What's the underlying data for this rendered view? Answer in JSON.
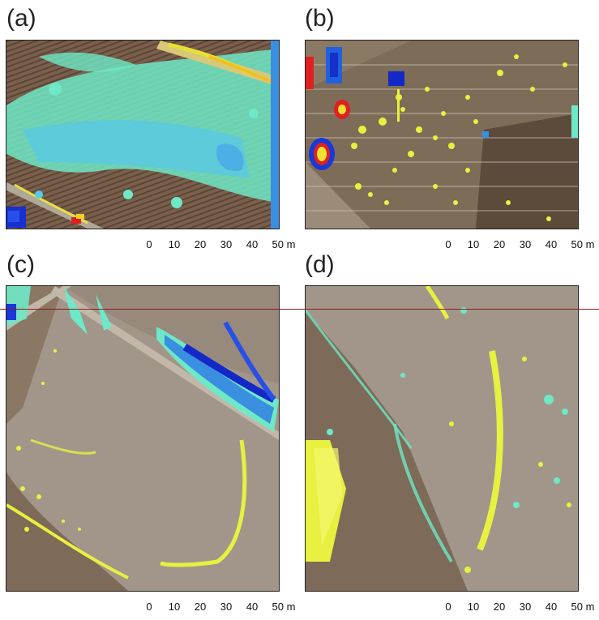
{
  "panels": [
    {
      "label": "(a)"
    },
    {
      "label": "(b)"
    },
    {
      "label": "(c)"
    },
    {
      "label": "(d)"
    }
  ],
  "scale_bar": {
    "ticks": [
      "0",
      "10",
      "20",
      "30",
      "40",
      "50 m"
    ]
  },
  "colors": {
    "soil_dark": "#6b5645",
    "soil_light": "#a89a88",
    "cyan": "#7fe8c8",
    "blue": "#2a7de0",
    "deep_blue": "#1428c8",
    "yellow": "#e8f040",
    "red": "#e02020"
  }
}
